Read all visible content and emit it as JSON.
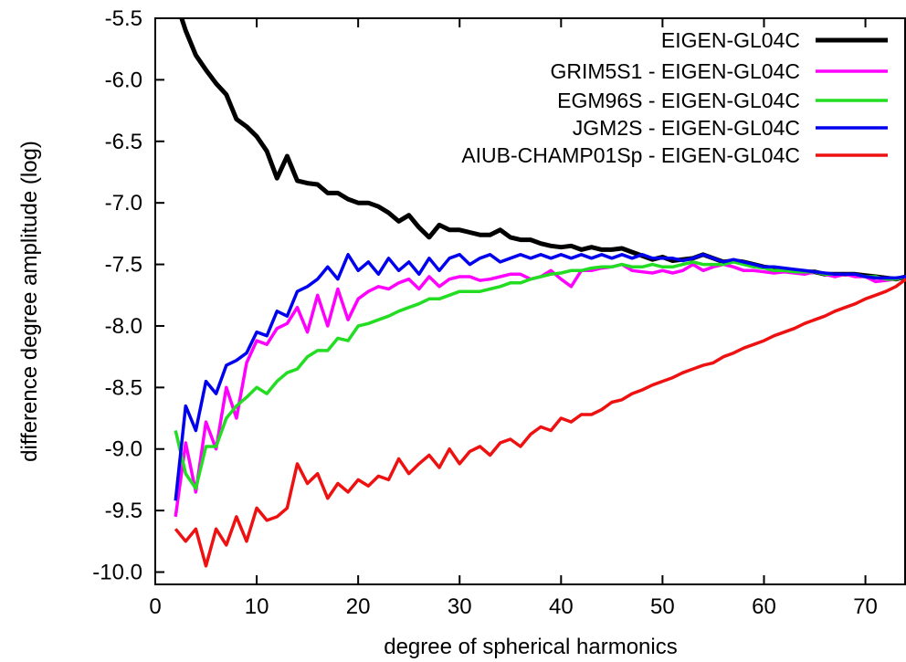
{
  "chart_data": {
    "type": "line",
    "title": "",
    "xlabel": "degree of spherical harmonics",
    "ylabel": "difference degree amplitude (log)",
    "xlim": [
      0,
      74
    ],
    "ylim": [
      -10.1,
      -5.5
    ],
    "xticks": [
      0,
      10,
      20,
      30,
      40,
      50,
      60,
      70
    ],
    "yticks": [
      -5.5,
      -6.0,
      -6.5,
      -7.0,
      -7.5,
      -8.0,
      -8.5,
      -9.0,
      -9.5,
      -10.0
    ],
    "xtick_labels": [
      "0",
      "10",
      "20",
      "30",
      "40",
      "50",
      "60",
      "70"
    ],
    "ytick_labels": [
      "-5.5",
      "-6.0",
      "-6.5",
      "-7.0",
      "-7.5",
      "-8.0",
      "-8.5",
      "-9.0",
      "-9.5",
      "-10.0"
    ],
    "grid": false,
    "legend_position": "top-right",
    "x": [
      2,
      3,
      4,
      5,
      6,
      7,
      8,
      9,
      10,
      11,
      12,
      13,
      14,
      15,
      16,
      17,
      18,
      19,
      20,
      21,
      22,
      23,
      24,
      25,
      26,
      27,
      28,
      29,
      30,
      31,
      32,
      33,
      34,
      35,
      36,
      37,
      38,
      39,
      40,
      41,
      42,
      43,
      44,
      45,
      46,
      47,
      48,
      49,
      50,
      51,
      52,
      53,
      54,
      55,
      56,
      57,
      58,
      59,
      60,
      61,
      62,
      63,
      64,
      65,
      66,
      67,
      68,
      69,
      70,
      71,
      72,
      73,
      74
    ],
    "series": [
      {
        "name": "EIGEN-GL04C",
        "color": "#000000",
        "values": [
          -5.35,
          -5.6,
          -5.8,
          -5.92,
          -6.03,
          -6.12,
          -6.32,
          -6.38,
          -6.46,
          -6.58,
          -6.8,
          -6.62,
          -6.82,
          -6.84,
          -6.85,
          -6.92,
          -6.92,
          -6.97,
          -7.0,
          -7.0,
          -7.03,
          -7.08,
          -7.15,
          -7.1,
          -7.2,
          -7.28,
          -7.18,
          -7.22,
          -7.22,
          -7.24,
          -7.26,
          -7.26,
          -7.22,
          -7.28,
          -7.3,
          -7.3,
          -7.33,
          -7.35,
          -7.36,
          -7.35,
          -7.38,
          -7.36,
          -7.38,
          -7.38,
          -7.37,
          -7.4,
          -7.43,
          -7.46,
          -7.44,
          -7.47,
          -7.46,
          -7.45,
          -7.42,
          -7.45,
          -7.48,
          -7.47,
          -7.48,
          -7.5,
          -7.52,
          -7.53,
          -7.55,
          -7.55,
          -7.56,
          -7.56,
          -7.58,
          -7.58,
          -7.58,
          -7.58,
          -7.59,
          -7.6,
          -7.61,
          -7.62,
          -7.6
        ]
      },
      {
        "name": "GRIM5S1 - EIGEN-GL04C",
        "color": "#ff00ff",
        "values": [
          -9.55,
          -8.95,
          -9.35,
          -8.78,
          -9.0,
          -8.5,
          -8.75,
          -8.3,
          -8.12,
          -8.15,
          -8.02,
          -7.98,
          -7.85,
          -8.05,
          -7.75,
          -8.0,
          -7.7,
          -7.95,
          -7.78,
          -7.72,
          -7.68,
          -7.7,
          -7.65,
          -7.62,
          -7.7,
          -7.6,
          -7.68,
          -7.62,
          -7.6,
          -7.6,
          -7.63,
          -7.62,
          -7.6,
          -7.58,
          -7.58,
          -7.62,
          -7.6,
          -7.55,
          -7.62,
          -7.68,
          -7.55,
          -7.55,
          -7.53,
          -7.52,
          -7.5,
          -7.55,
          -7.56,
          -7.57,
          -7.55,
          -7.57,
          -7.55,
          -7.5,
          -7.55,
          -7.52,
          -7.5,
          -7.52,
          -7.55,
          -7.55,
          -7.56,
          -7.57,
          -7.56,
          -7.57,
          -7.58,
          -7.56,
          -7.58,
          -7.6,
          -7.58,
          -7.6,
          -7.6,
          -7.64,
          -7.63,
          -7.62,
          -7.6
        ]
      },
      {
        "name": "EGM96S - EIGEN-GL04C",
        "color": "#22dd22",
        "values": [
          -8.85,
          -9.2,
          -9.32,
          -8.98,
          -8.98,
          -8.75,
          -8.65,
          -8.58,
          -8.5,
          -8.55,
          -8.45,
          -8.38,
          -8.35,
          -8.25,
          -8.2,
          -8.2,
          -8.1,
          -8.12,
          -8.0,
          -7.98,
          -7.95,
          -7.92,
          -7.88,
          -7.85,
          -7.82,
          -7.78,
          -7.78,
          -7.75,
          -7.72,
          -7.72,
          -7.72,
          -7.7,
          -7.68,
          -7.65,
          -7.65,
          -7.62,
          -7.6,
          -7.58,
          -7.57,
          -7.55,
          -7.55,
          -7.53,
          -7.52,
          -7.52,
          -7.5,
          -7.52,
          -7.52,
          -7.5,
          -7.52,
          -7.52,
          -7.5,
          -7.48,
          -7.5,
          -7.5,
          -7.5,
          -7.48,
          -7.5,
          -7.52,
          -7.53,
          -7.55,
          -7.55,
          -7.56,
          -7.56,
          -7.56,
          -7.58,
          -7.58,
          -7.58,
          -7.58,
          -7.6,
          -7.6,
          -7.62,
          -7.62,
          -7.6
        ]
      },
      {
        "name": "JGM2S - EIGEN-GL04C",
        "color": "#0000ee",
        "values": [
          -9.42,
          -8.65,
          -8.85,
          -8.45,
          -8.55,
          -8.32,
          -8.28,
          -8.22,
          -8.05,
          -8.08,
          -7.88,
          -7.92,
          -7.72,
          -7.68,
          -7.62,
          -7.52,
          -7.62,
          -7.42,
          -7.55,
          -7.48,
          -7.58,
          -7.45,
          -7.55,
          -7.48,
          -7.58,
          -7.45,
          -7.55,
          -7.45,
          -7.42,
          -7.5,
          -7.45,
          -7.42,
          -7.48,
          -7.45,
          -7.42,
          -7.45,
          -7.42,
          -7.45,
          -7.42,
          -7.45,
          -7.42,
          -7.45,
          -7.42,
          -7.45,
          -7.42,
          -7.45,
          -7.42,
          -7.45,
          -7.45,
          -7.45,
          -7.47,
          -7.45,
          -7.42,
          -7.45,
          -7.48,
          -7.46,
          -7.48,
          -7.5,
          -7.52,
          -7.52,
          -7.53,
          -7.54,
          -7.55,
          -7.56,
          -7.57,
          -7.58,
          -7.58,
          -7.58,
          -7.6,
          -7.61,
          -7.61,
          -7.61,
          -7.6
        ]
      },
      {
        "name": "AIUB-CHAMP01Sp - EIGEN-GL04C",
        "color": "#ee1111",
        "values": [
          -9.65,
          -9.75,
          -9.65,
          -9.95,
          -9.65,
          -9.78,
          -9.55,
          -9.75,
          -9.48,
          -9.58,
          -9.55,
          -9.48,
          -9.12,
          -9.28,
          -9.2,
          -9.4,
          -9.28,
          -9.35,
          -9.25,
          -9.3,
          -9.22,
          -9.25,
          -9.08,
          -9.2,
          -9.12,
          -9.05,
          -9.15,
          -9.0,
          -9.12,
          -9.02,
          -8.98,
          -9.05,
          -8.95,
          -8.92,
          -8.98,
          -8.88,
          -8.82,
          -8.85,
          -8.75,
          -8.78,
          -8.72,
          -8.72,
          -8.68,
          -8.62,
          -8.6,
          -8.55,
          -8.52,
          -8.48,
          -8.45,
          -8.42,
          -8.38,
          -8.35,
          -8.32,
          -8.3,
          -8.25,
          -8.22,
          -8.18,
          -8.15,
          -8.12,
          -8.08,
          -8.05,
          -8.02,
          -7.98,
          -7.95,
          -7.92,
          -7.88,
          -7.85,
          -7.82,
          -7.78,
          -7.75,
          -7.72,
          -7.68,
          -7.62
        ]
      }
    ]
  }
}
